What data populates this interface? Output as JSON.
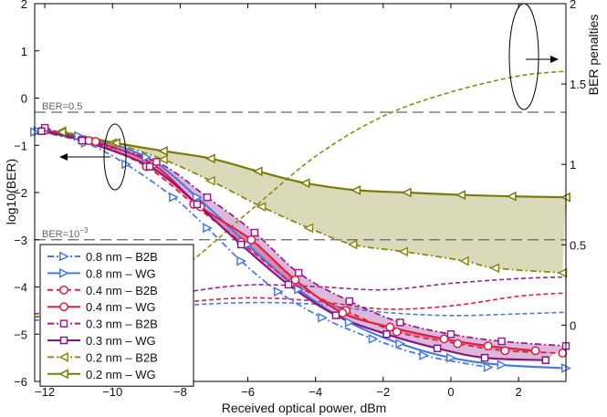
{
  "chart_data": {
    "type": "line",
    "xlabel": "Received optical power, dBm",
    "ylabel": "log10(BER)",
    "ylabel_right": "BER penalties",
    "xlim": [
      -12.3,
      3.4
    ],
    "ylim": [
      -6,
      2
    ],
    "ylim_right": [
      -0.35,
      2
    ],
    "xticks": [
      -12,
      -10,
      -8,
      -6,
      -4,
      -2,
      0,
      2
    ],
    "yticks": [
      -6,
      -5,
      -4,
      -3,
      -2,
      -1,
      0,
      1,
      2
    ],
    "yticks_right": [
      0,
      0.5,
      1,
      1.5,
      2
    ],
    "grid": false,
    "legend_position": "bottom-left",
    "reference_lines": [
      {
        "y": -0.3,
        "label": "BER=0.5"
      },
      {
        "y": -3,
        "label": "BER=10",
        "label_sup": "−3"
      }
    ],
    "series": [
      {
        "name": "0.8 nm – B2B",
        "color": "#4a7be0",
        "dash": "dashdot",
        "marker": "triangle-right",
        "fill": false,
        "x": [
          -12.2,
          -10.8,
          -9.6,
          -8.2,
          -7.2,
          -6.2,
          -5.1,
          -3.8,
          -2.3,
          -0.8,
          1.1
        ],
        "y": [
          -0.7,
          -0.95,
          -1.4,
          -2.1,
          -2.75,
          -3.45,
          -4.1,
          -4.65,
          -5.1,
          -5.45,
          -5.7
        ]
      },
      {
        "name": "0.8 nm – WG",
        "color": "#4a7be0",
        "dash": "solid",
        "marker": "triangle-right",
        "fill": false,
        "x": [
          -12.3,
          -11.0,
          -9.0,
          -7.5,
          -6.0,
          -4.5,
          -3.0,
          -1.5,
          0.0,
          1.5,
          3.4
        ],
        "y": [
          -0.72,
          -0.8,
          -1.25,
          -2.1,
          -3.1,
          -4.05,
          -4.75,
          -5.2,
          -5.5,
          -5.65,
          -5.72
        ]
      },
      {
        "name": "0.4 nm – B2B",
        "color": "#dd2244",
        "dash": "dashed",
        "marker": "circle",
        "fill": false,
        "x": [
          -12.0,
          -10.7,
          -9.0,
          -7.6,
          -6.2,
          -4.7,
          -3.1,
          -1.6,
          0.2,
          1.6,
          3.3
        ],
        "y": [
          -0.65,
          -0.9,
          -1.45,
          -2.25,
          -3.05,
          -3.9,
          -4.5,
          -4.95,
          -5.2,
          -5.35,
          -5.4
        ]
      },
      {
        "name": "0.4 nm – WG",
        "color": "#dd2244",
        "dash": "solid",
        "marker": "circle",
        "fill": true,
        "x": [
          -12.0,
          -10.5,
          -8.8,
          -7.4,
          -5.9,
          -4.6,
          -3.2,
          -1.8,
          -0.2,
          1.1,
          2.5
        ],
        "y": [
          -0.68,
          -0.92,
          -1.4,
          -2.3,
          -3.0,
          -3.85,
          -4.55,
          -4.85,
          -5.1,
          -5.25,
          -5.35
        ]
      },
      {
        "name": "0.3 nm – B2B",
        "color": "#9b1f94",
        "dash": "dashdot",
        "marker": "square",
        "fill": false,
        "x": [
          -12.0,
          -10.9,
          -8.7,
          -7.2,
          -5.8,
          -4.5,
          -3.0,
          -1.5,
          0.0,
          1.5,
          3.4
        ],
        "y": [
          -0.63,
          -0.88,
          -1.35,
          -2.1,
          -2.85,
          -3.7,
          -4.3,
          -4.75,
          -5.0,
          -5.15,
          -5.25
        ]
      },
      {
        "name": "0.3 nm – WG",
        "color": "#8b1486",
        "dash": "solid",
        "marker": "square",
        "fill": true,
        "x": [
          -12.1,
          -10.9,
          -8.9,
          -7.5,
          -6.2,
          -4.8,
          -3.4,
          -1.9,
          -0.4,
          1.0,
          2.8
        ],
        "y": [
          -0.7,
          -0.9,
          -1.45,
          -2.25,
          -3.1,
          -3.95,
          -4.6,
          -5.0,
          -5.3,
          -5.5,
          -5.55
        ]
      },
      {
        "name": "0.2 nm – B2B",
        "color": "#8a8a16",
        "dash": "dashdot",
        "marker": "triangle-left",
        "fill": false,
        "x": [
          -11.5,
          -10.0,
          -8.5,
          -7.1,
          -5.6,
          -4.2,
          -2.9,
          -1.4,
          0.4,
          1.3,
          3.3
        ],
        "y": [
          -0.7,
          -0.95,
          -1.3,
          -1.75,
          -2.3,
          -2.75,
          -3.1,
          -3.25,
          -3.45,
          -3.6,
          -3.7
        ]
      },
      {
        "name": "0.2 nm – WG",
        "color": "#7a7a0a",
        "dash": "solid",
        "marker": "triangle-left",
        "fill": true,
        "x": [
          -11.5,
          -9.9,
          -8.5,
          -7.1,
          -5.7,
          -4.3,
          -2.8,
          -1.3,
          0.3,
          1.8,
          3.4
        ],
        "y": [
          -0.72,
          -0.95,
          -1.12,
          -1.28,
          -1.55,
          -1.8,
          -1.95,
          -2.0,
          -2.05,
          -2.08,
          -2.1
        ]
      }
    ],
    "penalty_series": [
      {
        "name": "0.8 nm",
        "color": "#4a7be0",
        "x": [
          -12.3,
          -10.0,
          -8.0,
          -6.0,
          -4.0,
          -2.0,
          0.0,
          2.0,
          3.4
        ],
        "y": [
          0.03,
          0.07,
          0.12,
          0.14,
          0.13,
          0.08,
          0.06,
          0.07,
          0.08
        ]
      },
      {
        "name": "0.4 nm",
        "color": "#dd2244",
        "x": [
          -12.3,
          -10.0,
          -8.0,
          -6.0,
          -4.0,
          -2.0,
          0.0,
          2.0,
          3.4
        ],
        "y": [
          0.05,
          0.09,
          0.14,
          0.17,
          0.15,
          0.1,
          0.12,
          0.18,
          0.2
        ]
      },
      {
        "name": "0.3 nm",
        "color": "#9b1f94",
        "x": [
          -12.3,
          -10.0,
          -8.0,
          -6.0,
          -4.0,
          -2.0,
          0.0,
          2.0,
          3.4
        ],
        "y": [
          0.07,
          0.12,
          0.2,
          0.25,
          0.24,
          0.22,
          0.26,
          0.29,
          0.3
        ]
      },
      {
        "name": "0.2 nm",
        "color": "#8a8a16",
        "x": [
          -12.3,
          -10.0,
          -8.0,
          -6.0,
          -4.0,
          -2.0,
          0.0,
          2.0,
          3.4
        ],
        "y": [
          0.05,
          0.15,
          0.35,
          0.7,
          1.05,
          1.3,
          1.45,
          1.55,
          1.58
        ]
      }
    ]
  }
}
